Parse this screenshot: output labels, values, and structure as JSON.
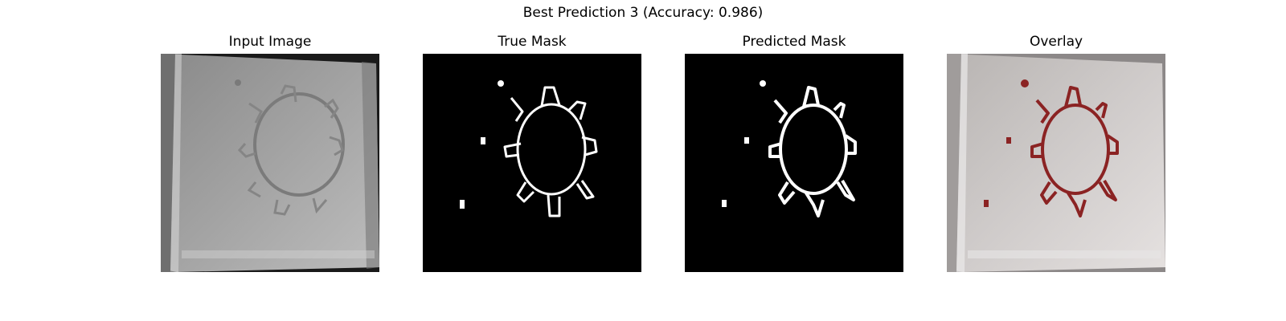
{
  "figure": {
    "suptitle": "Best Prediction 3 (Accuracy: 0.986)",
    "panels": [
      {
        "title": "Input Image"
      },
      {
        "title": "True Mask"
      },
      {
        "title": "Predicted Mask"
      },
      {
        "title": "Overlay"
      }
    ]
  },
  "colors": {
    "background": "#ffffff",
    "mask_background": "#000000",
    "mask_foreground": "#ffffff",
    "overlay_highlight": "#8b2323",
    "grayscale_mid": "#a0a0a0"
  }
}
